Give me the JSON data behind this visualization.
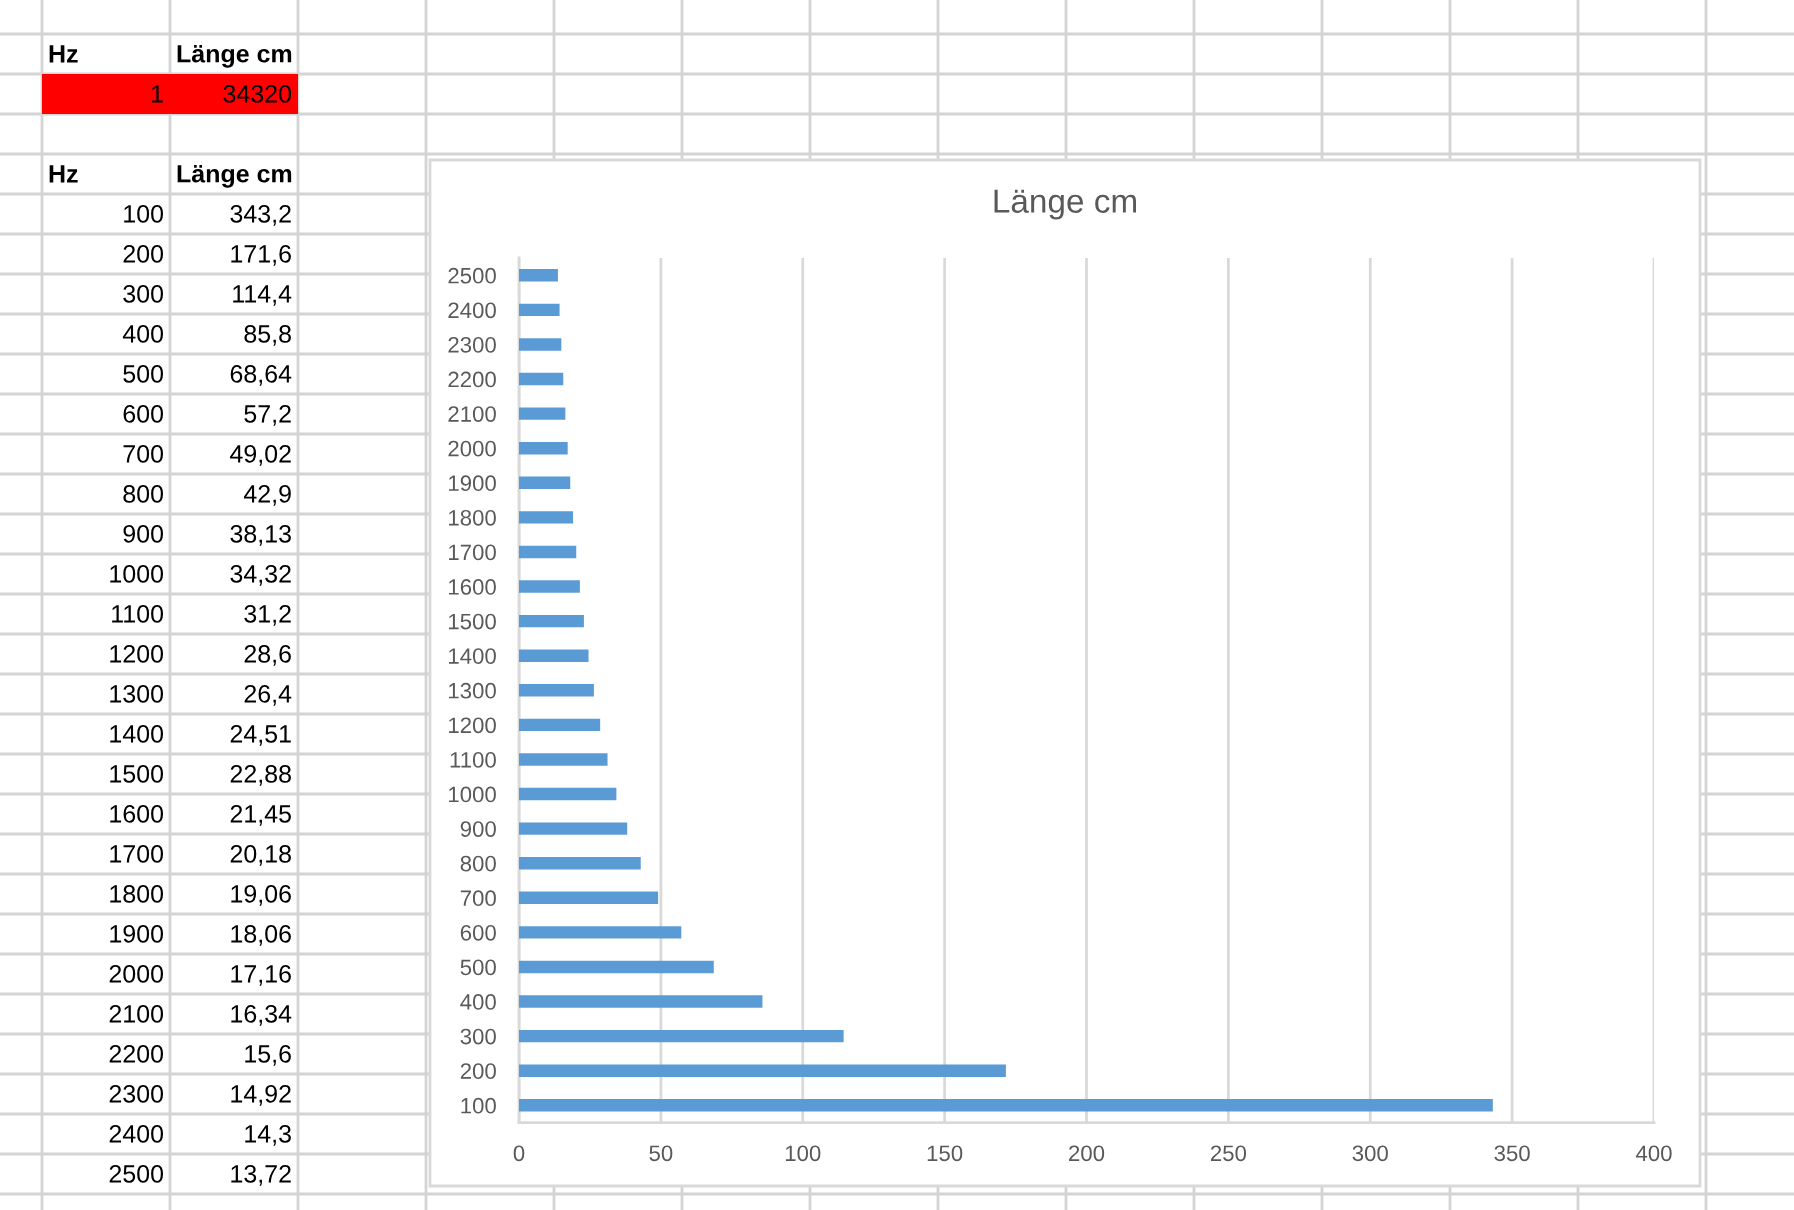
{
  "chart_data": {
    "type": "bar",
    "orientation": "horizontal",
    "title": "Länge cm",
    "categories": [
      "2500",
      "2400",
      "2300",
      "2200",
      "2100",
      "2000",
      "1900",
      "1800",
      "1700",
      "1600",
      "1500",
      "1400",
      "1300",
      "1200",
      "1100",
      "1000",
      "900",
      "800",
      "700",
      "600",
      "500",
      "400",
      "300",
      "200",
      "100"
    ],
    "values": [
      13.72,
      14.3,
      14.92,
      15.6,
      16.34,
      17.16,
      18.06,
      19.06,
      20.18,
      21.45,
      22.88,
      24.51,
      26.4,
      28.6,
      31.2,
      34.32,
      38.13,
      42.9,
      49.02,
      57.2,
      68.64,
      85.8,
      114.4,
      171.6,
      343.2
    ],
    "color": "#5b9bd5",
    "xlim": [
      0,
      400
    ],
    "xticks": [
      0,
      50,
      100,
      150,
      200,
      250,
      300,
      350,
      400
    ],
    "grid": "x",
    "annotations": [
      "Hz",
      "Länge cm",
      "1",
      "34320",
      "Hz",
      "Länge cm",
      "343,2",
      "171,6",
      "114,4",
      "85,8",
      "68,64",
      "57,2",
      "49,02",
      "42,9",
      "38,13",
      "34,32",
      "31,2",
      "28,6",
      "26,4",
      "24,51",
      "22,88",
      "21,45",
      "20,18",
      "19,06",
      "18,06",
      "17,16",
      "16,34",
      "15,6",
      "14,92",
      "14,3",
      "13,72"
    ]
  }
}
